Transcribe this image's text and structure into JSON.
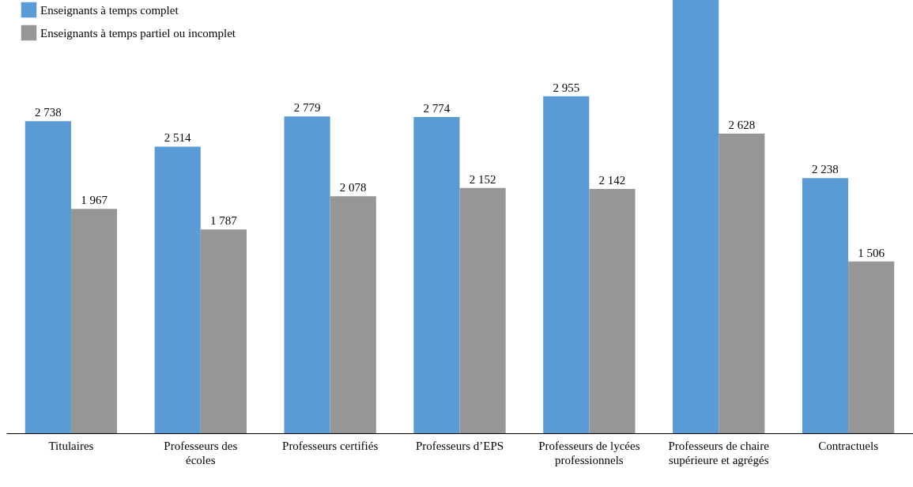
{
  "chart_data": {
    "type": "bar",
    "categories": [
      "Titulaires",
      "Professeurs des écoles",
      "Professeurs certifiés",
      "Professeurs d’EPS",
      "Professeurs de lycées professionnels",
      "Professeurs de chaire supérieure et agrégés",
      "Contractuels"
    ],
    "series": [
      {
        "name": "Enseignants à temps complet",
        "color": "#5b9bd5",
        "values": [
          2738,
          2514,
          2779,
          2774,
          2955,
          3800,
          2238
        ],
        "value_labels": [
          "2 738",
          "2 514",
          "2 779",
          "2 774",
          "2 955",
          null,
          "2 238"
        ]
      },
      {
        "name": "Enseignants à temps partiel ou incomplet",
        "color": "#969696",
        "values": [
          1967,
          1787,
          2078,
          2152,
          2142,
          2628,
          1506
        ],
        "value_labels": [
          "1 967",
          "1 787",
          "2 078",
          "2 152",
          "2 142",
          "2 628",
          "1 506"
        ]
      }
    ],
    "legend": "top left",
    "grid": false
  }
}
